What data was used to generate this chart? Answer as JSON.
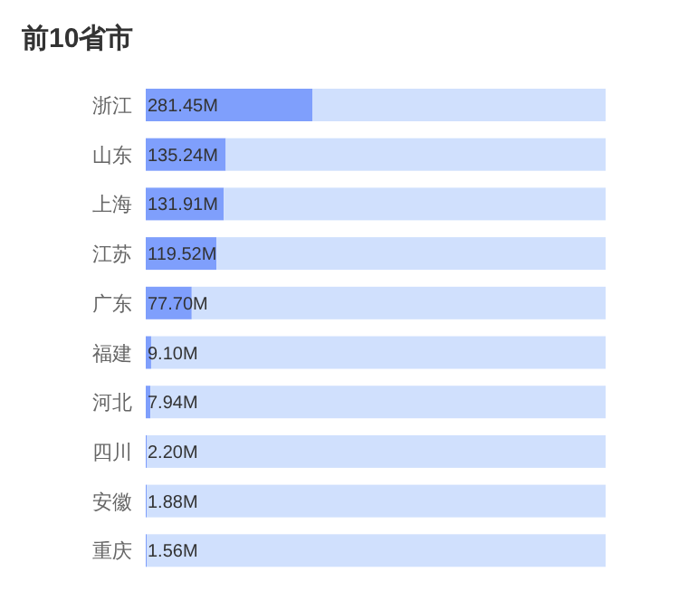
{
  "chart_data": {
    "type": "bar",
    "orientation": "horizontal",
    "title": "前10省市",
    "categories": [
      "浙江",
      "山东",
      "上海",
      "江苏",
      "广东",
      "福建",
      "河北",
      "四川",
      "安徽",
      "重庆"
    ],
    "series": [
      {
        "color": "#7f9ffc",
        "values": [
          281.45,
          135.24,
          131.91,
          119.52,
          77.7,
          9.1,
          7.94,
          2.2,
          1.88,
          1.56
        ],
        "value_labels": [
          "281.45M",
          "135.24M",
          "131.91M",
          "119.52M",
          "77.70M",
          "9.10M",
          "7.94M",
          "2.20M",
          "1.88M",
          "1.56M"
        ]
      },
      {
        "color": "#d0e0fd",
        "values": [
          495.55,
          641.76,
          645.09,
          657.48,
          699.3,
          767.9,
          769.06,
          774.8,
          775.12,
          775.44
        ]
      }
    ],
    "stacked": true,
    "xlim": [
      0,
      777
    ],
    "tick_labels": "y"
  }
}
